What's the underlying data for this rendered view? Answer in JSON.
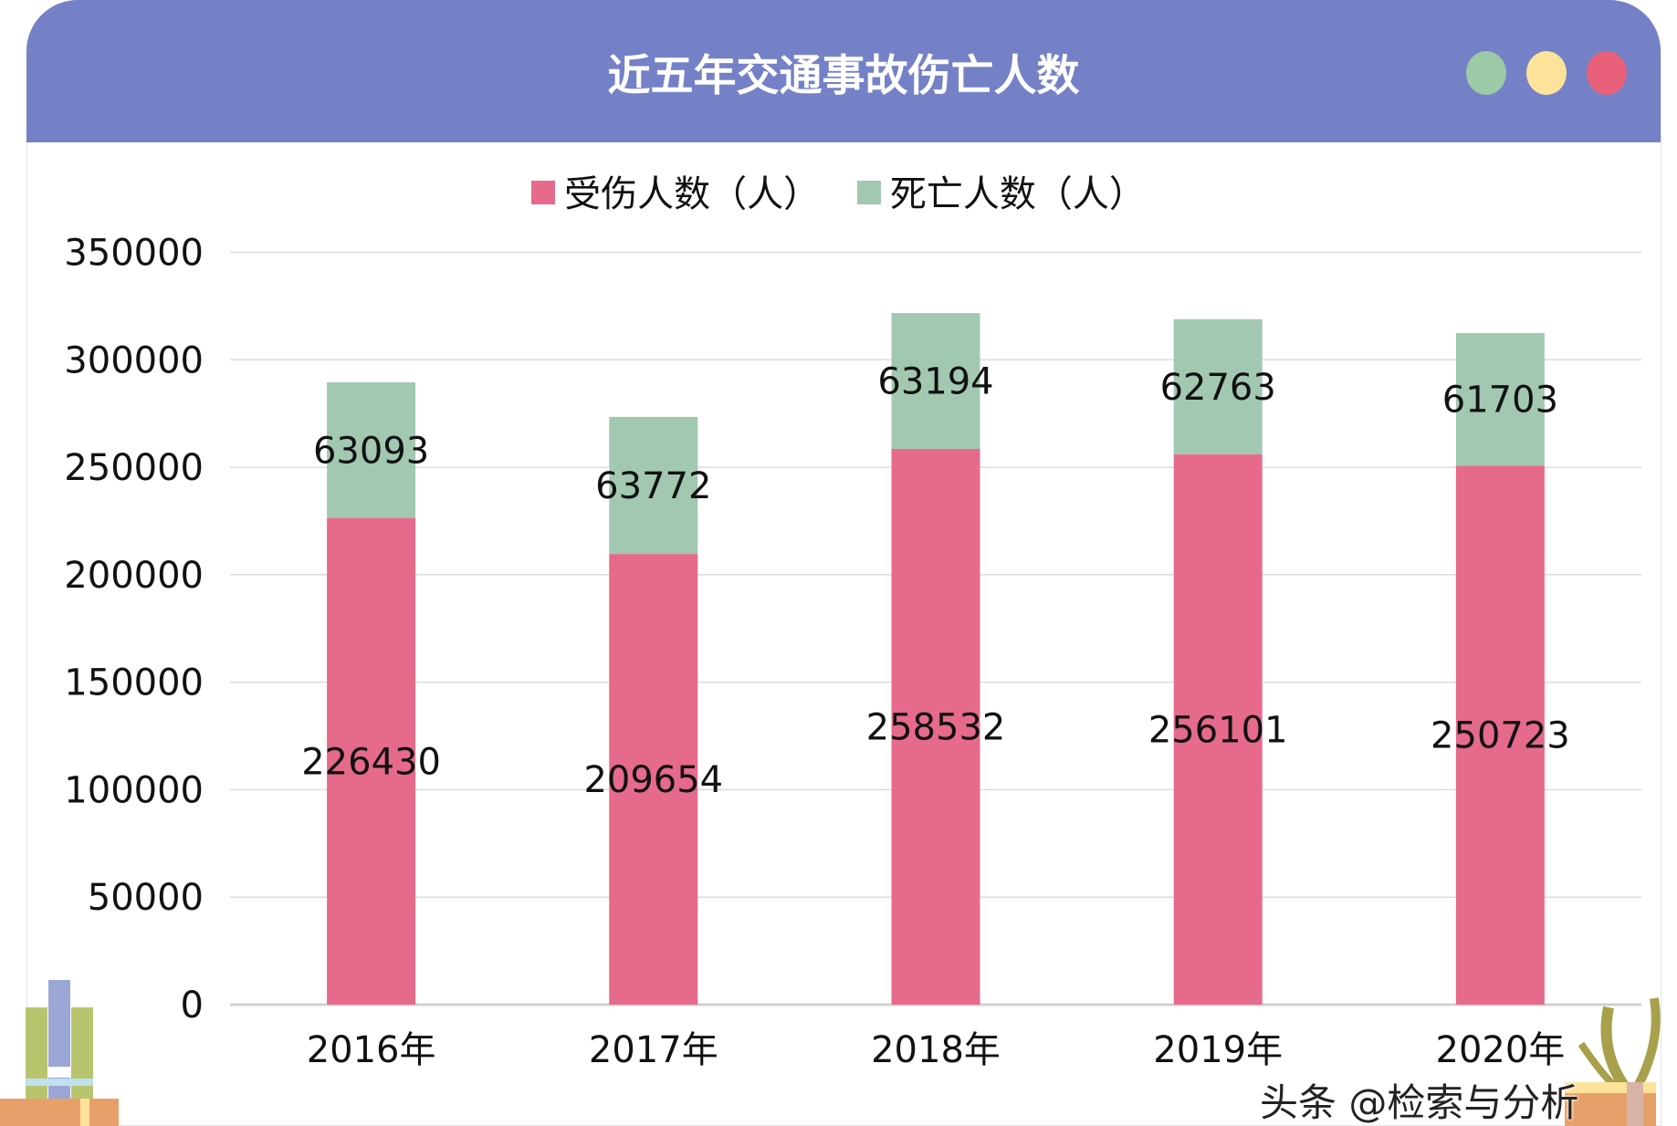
{
  "header": {
    "title": "近五年交通事故伤亡人数",
    "dots": [
      "#9ccaa6",
      "#fde29a",
      "#e8607a"
    ],
    "color": "#7581c6"
  },
  "watermark": "头条 @检索与分析",
  "chart_data": {
    "type": "bar",
    "stacked": true,
    "title": "近五年交通事故伤亡人数",
    "categories": [
      "2016年",
      "2017年",
      "2018年",
      "2019年",
      "2020年"
    ],
    "series": [
      {
        "name": "受伤人数（人）",
        "color": "#e66a8c",
        "values": [
          226430,
          209654,
          258532,
          256101,
          250723
        ]
      },
      {
        "name": "死亡人数（人）",
        "color": "#a2c8b1",
        "values": [
          63093,
          63772,
          63194,
          62763,
          61703
        ]
      }
    ],
    "ylim": [
      0,
      350000
    ],
    "yticks": [
      0,
      50000,
      100000,
      150000,
      200000,
      250000,
      300000,
      350000
    ],
    "grid": true,
    "legend": "top",
    "data_labels": true
  }
}
